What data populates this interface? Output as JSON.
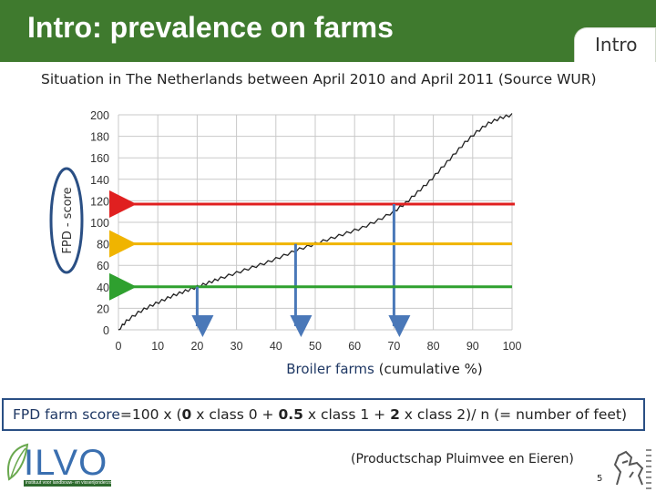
{
  "header": {
    "title": "Intro: prevalence on farms",
    "tab_label": "Intro"
  },
  "subtitle": "Situation in The Netherlands between April 2010 and  April 2011 (Source WUR)",
  "chart_data": {
    "type": "line",
    "ylabel": "FPD - score",
    "xlabel_bold": "Broiler farms",
    "xlabel_rest": " (cumulative %)",
    "x_ticks": [
      "0",
      "10",
      "20",
      "30",
      "40",
      "50",
      "60",
      "70",
      "80",
      "90",
      "100"
    ],
    "y_ticks": [
      "0",
      "20",
      "40",
      "60",
      "80",
      "100",
      "120",
      "140",
      "160",
      "180",
      "200"
    ],
    "xlim": [
      0,
      100
    ],
    "ylim": [
      0,
      200
    ],
    "grid": true,
    "series": [
      {
        "x": [
          0,
          2,
          5,
          8,
          11,
          14,
          17,
          20,
          23,
          26,
          30,
          34,
          38,
          42,
          46,
          50,
          54,
          58,
          62,
          66,
          70,
          73,
          76,
          79,
          82,
          85,
          88,
          91,
          94,
          97,
          100
        ],
        "y": [
          0,
          8,
          16,
          22,
          27,
          32,
          36,
          40,
          44,
          48,
          53,
          58,
          63,
          69,
          75,
          80,
          85,
          90,
          95,
          102,
          110,
          118,
          128,
          138,
          150,
          162,
          174,
          184,
          192,
          197,
          200
        ]
      }
    ],
    "reference_lines": [
      {
        "y": 117,
        "color": "#e02020",
        "x_drop": 70
      },
      {
        "y": 80,
        "color": "#f0b400",
        "x_drop": 45
      },
      {
        "y": 40,
        "color": "#2fa02f",
        "x_drop": 20
      }
    ]
  },
  "formula": {
    "p1": "FPD",
    "p2": " farm score",
    "p3": "=100 x (",
    "p4": "0",
    "p5": " x  class 0 + ",
    "p6": "0.5",
    "p7": " x class 1 + ",
    "p8": "2",
    "p9": "  x class 2)/ n (= number of feet)"
  },
  "source": "(Productschap Pluimvee en Eieren)",
  "logo": {
    "text": "ILVO",
    "tagline": "instituut voor landbouw- en visserijonderzoek"
  },
  "page_number": "5",
  "colors": {
    "header": "#3f7a2e",
    "arrow_blue": "#4a78b8",
    "curve": "#222222"
  }
}
